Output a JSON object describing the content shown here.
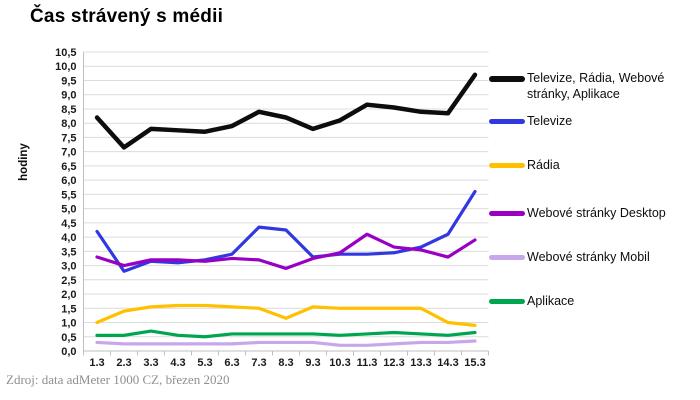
{
  "title": "Čas strávený s médii",
  "source": "Zdroj: data adMeter 1000 CZ, březen 2020",
  "chart_data": {
    "type": "line",
    "title": "Čas strávený s médii",
    "xlabel": "",
    "ylabel": "hodiny",
    "ylim": [
      0,
      10.5
    ],
    "ytick_step": 0.5,
    "grid": true,
    "legend_position": "right",
    "categories": [
      "1.3",
      "2.3",
      "3.3",
      "4.3",
      "5.3",
      "6.3",
      "7.3",
      "8.3",
      "9.3",
      "10.3",
      "11.3",
      "12.3",
      "13.3",
      "14.3",
      "15.3"
    ],
    "series": [
      {
        "name": "Televize, Rádia, Webové stránky, Aplikace",
        "color": "#0d0d0d",
        "line_width": 4.5,
        "values": [
          8.2,
          7.15,
          7.8,
          7.75,
          7.7,
          7.9,
          8.4,
          8.2,
          7.8,
          8.1,
          8.65,
          8.55,
          8.4,
          8.35,
          9.7
        ]
      },
      {
        "name": "Televize",
        "color": "#3238e0",
        "line_width": 3.2,
        "values": [
          4.2,
          2.8,
          3.15,
          3.1,
          3.2,
          3.4,
          4.35,
          4.25,
          3.3,
          3.4,
          3.4,
          3.45,
          3.65,
          4.1,
          5.6
        ]
      },
      {
        "name": "Rádia",
        "color": "#ffc000",
        "line_width": 3.2,
        "values": [
          1.0,
          1.4,
          1.55,
          1.6,
          1.6,
          1.55,
          1.5,
          1.15,
          1.55,
          1.5,
          1.5,
          1.5,
          1.5,
          1.0,
          0.9
        ]
      },
      {
        "name": "Webové stránky Desktop",
        "color": "#9a00c4",
        "line_width": 3.2,
        "values": [
          3.3,
          3.0,
          3.2,
          3.2,
          3.15,
          3.25,
          3.2,
          2.9,
          3.25,
          3.45,
          4.1,
          3.65,
          3.55,
          3.3,
          3.9
        ]
      },
      {
        "name": "Webové stránky Mobil",
        "color": "#c7a7ea",
        "line_width": 3.2,
        "values": [
          0.3,
          0.25,
          0.25,
          0.25,
          0.25,
          0.25,
          0.3,
          0.3,
          0.3,
          0.2,
          0.2,
          0.25,
          0.3,
          0.3,
          0.35
        ]
      },
      {
        "name": "Aplikace",
        "color": "#00a550",
        "line_width": 3.2,
        "values": [
          0.55,
          0.55,
          0.7,
          0.55,
          0.5,
          0.6,
          0.6,
          0.6,
          0.6,
          0.55,
          0.6,
          0.65,
          0.6,
          0.55,
          0.65
        ]
      }
    ],
    "colors": {
      "gridline": "#dcdcdc",
      "axis": "#bfbfbf",
      "tick_label": "#1a1a1a"
    }
  }
}
